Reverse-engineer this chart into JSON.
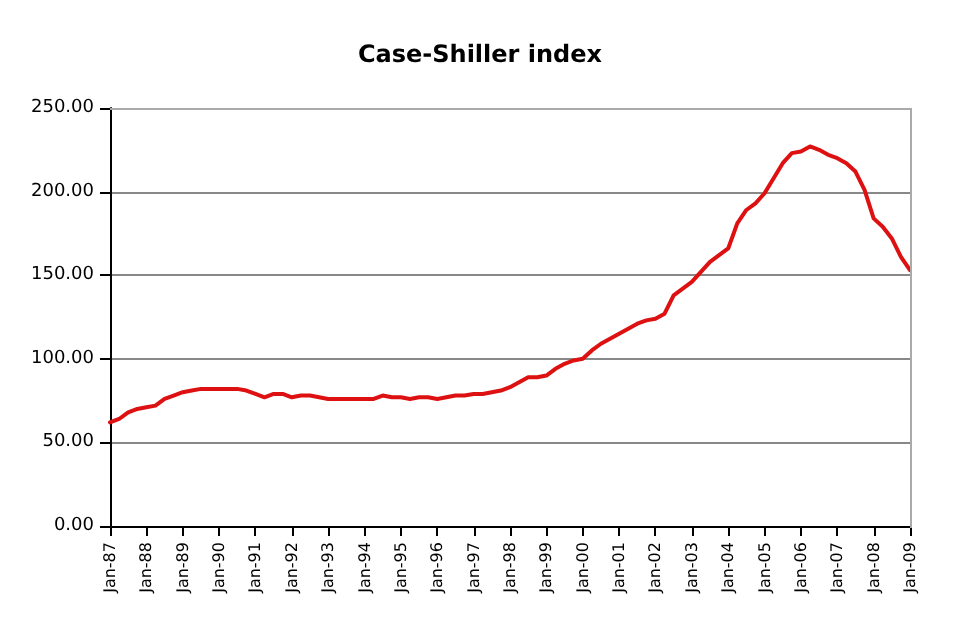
{
  "chart_data": {
    "type": "line",
    "title": "Case-Shiller index",
    "categories": [
      "Jan-87",
      null,
      null,
      null,
      "Jan-88",
      null,
      null,
      null,
      "Jan-89",
      null,
      null,
      null,
      "Jan-90",
      null,
      null,
      null,
      "Jan-91",
      null,
      null,
      null,
      "Jan-92",
      null,
      null,
      null,
      "Jan-93",
      null,
      null,
      null,
      "Jan-94",
      null,
      null,
      null,
      "Jan-95",
      null,
      null,
      null,
      "Jan-96",
      null,
      null,
      null,
      "Jan-97",
      null,
      null,
      null,
      "Jan-98",
      null,
      null,
      null,
      "Jan-99",
      null,
      null,
      null,
      "Jan-00",
      null,
      null,
      null,
      "Jan-01",
      null,
      null,
      null,
      "Jan-02",
      null,
      null,
      null,
      "Jan-03",
      null,
      null,
      null,
      "Jan-04",
      null,
      null,
      null,
      "Jan-05",
      null,
      null,
      null,
      "Jan-06",
      null,
      null,
      null,
      "Jan-07",
      null,
      null,
      null,
      "Jan-08",
      null,
      null,
      null,
      "Jan-09"
    ],
    "series": [
      {
        "color": "#dd1111",
        "values": [
          62,
          64,
          68,
          70,
          71,
          72,
          76,
          78,
          80,
          81,
          82,
          82,
          82,
          82,
          82,
          81,
          79,
          77,
          79,
          79,
          77,
          78,
          78,
          77,
          76,
          76,
          76,
          76,
          76,
          76,
          78,
          77,
          77,
          76,
          77,
          77,
          76,
          77,
          78,
          78,
          79,
          79,
          80,
          81,
          83,
          86,
          89,
          89,
          90,
          94,
          97,
          99,
          100,
          105,
          109,
          112,
          115,
          118,
          121,
          123,
          124,
          127,
          138,
          142,
          146,
          152,
          158,
          162,
          166,
          181,
          189,
          193,
          199,
          208,
          217,
          223,
          224,
          227,
          225,
          222,
          220,
          217,
          212,
          201,
          184,
          179,
          172,
          161,
          153
        ]
      }
    ],
    "ylim": [
      0,
      250
    ],
    "yticks": [
      {
        "value": 0,
        "label": "0.00"
      },
      {
        "value": 50,
        "label": "50.00"
      },
      {
        "value": 100,
        "label": "100.00"
      },
      {
        "value": 150,
        "label": "150.00"
      },
      {
        "value": 200,
        "label": "200.00"
      },
      {
        "value": 250,
        "label": "250.00"
      }
    ],
    "grid": "y",
    "marker": "none",
    "line_style": "solid"
  }
}
